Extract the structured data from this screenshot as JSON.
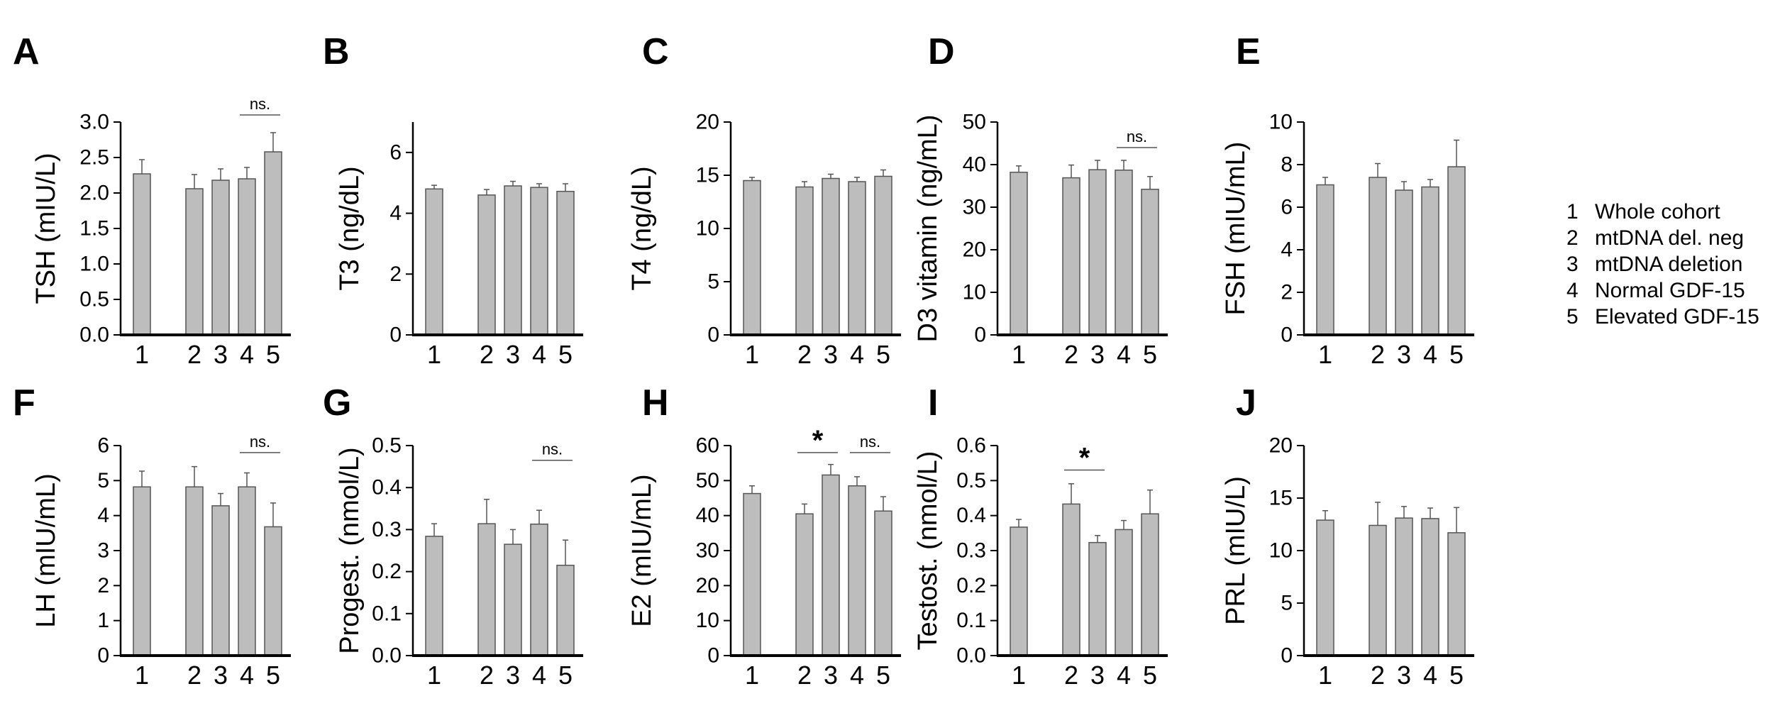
{
  "legend": {
    "items": [
      {
        "num": "1",
        "label": "Whole cohort"
      },
      {
        "num": "2",
        "label": "mtDNA del. neg"
      },
      {
        "num": "3",
        "label": "mtDNA deletion"
      },
      {
        "num": "4",
        "label": "Normal GDF-15"
      },
      {
        "num": "5",
        "label": "Elevated GDF-15"
      }
    ]
  },
  "colors": {
    "bar_fill": "#bdbdbd",
    "bar_stroke": "#555555",
    "axis": "#000000"
  },
  "chart_data": [
    {
      "type": "bar",
      "panel": "A",
      "ylabel": "TSH (mIU/L)",
      "categories": [
        "1",
        "2",
        "3",
        "4",
        "5"
      ],
      "values": [
        2.27,
        2.06,
        2.18,
        2.2,
        2.58
      ],
      "errors": [
        0.2,
        0.2,
        0.16,
        0.16,
        0.27
      ],
      "ylim": [
        0,
        3.0
      ],
      "yticks": [
        "0.0",
        "0.5",
        "1.0",
        "1.5",
        "2.0",
        "2.5",
        "3.0"
      ],
      "annotations": [
        {
          "type": "ns",
          "text": "ns.",
          "from": 4,
          "to": 5,
          "level": 3.1
        }
      ]
    },
    {
      "type": "bar",
      "panel": "B",
      "ylabel": "T3 (ng/dL)",
      "categories": [
        "1",
        "2",
        "3",
        "4",
        "5"
      ],
      "values": [
        4.8,
        4.6,
        4.9,
        4.85,
        4.72
      ],
      "errors": [
        0.12,
        0.18,
        0.15,
        0.12,
        0.25
      ],
      "ylim": [
        0,
        7
      ],
      "yticks": [
        "0",
        "2",
        "4",
        "6"
      ],
      "annotations": []
    },
    {
      "type": "bar",
      "panel": "C",
      "ylabel": "T4 (ng/dL)",
      "categories": [
        "1",
        "2",
        "3",
        "4",
        "5"
      ],
      "values": [
        14.5,
        13.9,
        14.7,
        14.4,
        14.9
      ],
      "errors": [
        0.3,
        0.5,
        0.4,
        0.4,
        0.6
      ],
      "ylim": [
        0,
        20
      ],
      "yticks": [
        "0",
        "5",
        "10",
        "15",
        "20"
      ],
      "annotations": []
    },
    {
      "type": "bar",
      "panel": "D",
      "ylabel": "D3 vitamin (ng/mL)",
      "categories": [
        "1",
        "2",
        "3",
        "4",
        "5"
      ],
      "values": [
        38.2,
        36.9,
        38.8,
        38.7,
        34.2
      ],
      "errors": [
        1.5,
        3.0,
        2.2,
        2.3,
        3.0
      ],
      "ylim": [
        0,
        50
      ],
      "yticks": [
        "0",
        "10",
        "20",
        "30",
        "40",
        "50"
      ],
      "annotations": [
        {
          "type": "ns",
          "text": "ns.",
          "from": 4,
          "to": 5,
          "level": 44
        }
      ]
    },
    {
      "type": "bar",
      "panel": "E",
      "ylabel": "FSH (mIU/mL)",
      "categories": [
        "1",
        "2",
        "3",
        "4",
        "5"
      ],
      "values": [
        7.05,
        7.4,
        6.8,
        6.95,
        7.9
      ],
      "errors": [
        0.35,
        0.65,
        0.4,
        0.35,
        1.25
      ],
      "ylim": [
        0,
        10
      ],
      "yticks": [
        "0",
        "2",
        "4",
        "6",
        "8",
        "10"
      ],
      "annotations": []
    },
    {
      "type": "bar",
      "panel": "F",
      "ylabel": "LH (mIU/mL)",
      "categories": [
        "1",
        "2",
        "3",
        "4",
        "5"
      ],
      "values": [
        4.82,
        4.82,
        4.28,
        4.82,
        3.68
      ],
      "errors": [
        0.45,
        0.58,
        0.35,
        0.4,
        0.68
      ],
      "ylim": [
        0,
        6
      ],
      "yticks": [
        "0",
        "1",
        "2",
        "3",
        "4",
        "5",
        "6"
      ],
      "annotations": [
        {
          "type": "ns",
          "text": "ns.",
          "from": 4,
          "to": 5,
          "level": 5.8
        }
      ]
    },
    {
      "type": "bar",
      "panel": "G",
      "ylabel": "Progest. (nmol/L)",
      "categories": [
        "1",
        "2",
        "3",
        "4",
        "5"
      ],
      "values": [
        0.284,
        0.314,
        0.265,
        0.313,
        0.215
      ],
      "errors": [
        0.03,
        0.058,
        0.035,
        0.033,
        0.06
      ],
      "ylim": [
        0,
        0.5
      ],
      "yticks": [
        "0.0",
        "0.1",
        "0.2",
        "0.3",
        "0.4",
        "0.5"
      ],
      "annotations": [
        {
          "type": "ns",
          "text": "ns.",
          "from": 4,
          "to": 5,
          "level": 0.465
        }
      ]
    },
    {
      "type": "bar",
      "panel": "H",
      "ylabel": "E2 (mIU/mL)",
      "categories": [
        "1",
        "2",
        "3",
        "4",
        "5"
      ],
      "values": [
        46.3,
        40.5,
        51.6,
        48.5,
        41.3
      ],
      "errors": [
        2.2,
        2.8,
        3.0,
        2.6,
        4.1
      ],
      "ylim": [
        0,
        60
      ],
      "yticks": [
        "0",
        "10",
        "20",
        "30",
        "40",
        "50",
        "60"
      ],
      "annotations": [
        {
          "type": "sig",
          "text": "*",
          "from": 2,
          "to": 3,
          "level": 58
        },
        {
          "type": "ns",
          "text": "ns.",
          "from": 4,
          "to": 5,
          "level": 58
        }
      ]
    },
    {
      "type": "bar",
      "panel": "I",
      "ylabel": "Testost. (nmol/L)",
      "categories": [
        "1",
        "2",
        "3",
        "4",
        "5"
      ],
      "values": [
        0.367,
        0.433,
        0.323,
        0.36,
        0.405
      ],
      "errors": [
        0.022,
        0.058,
        0.02,
        0.026,
        0.068
      ],
      "ylim": [
        0,
        0.6
      ],
      "yticks": [
        "0.0",
        "0.1",
        "0.2",
        "0.3",
        "0.4",
        "0.5",
        "0.6"
      ],
      "annotations": [
        {
          "type": "sig",
          "text": "*",
          "from": 2,
          "to": 3,
          "level": 0.53
        }
      ]
    },
    {
      "type": "bar",
      "panel": "J",
      "ylabel": "PRL (mIU/L)",
      "categories": [
        "1",
        "2",
        "3",
        "4",
        "5"
      ],
      "values": [
        12.9,
        12.4,
        13.1,
        13.05,
        11.7
      ],
      "errors": [
        0.9,
        2.2,
        1.1,
        1.0,
        2.4
      ],
      "ylim": [
        0,
        20
      ],
      "yticks": [
        "0",
        "5",
        "10",
        "15",
        "20"
      ],
      "annotations": []
    }
  ]
}
